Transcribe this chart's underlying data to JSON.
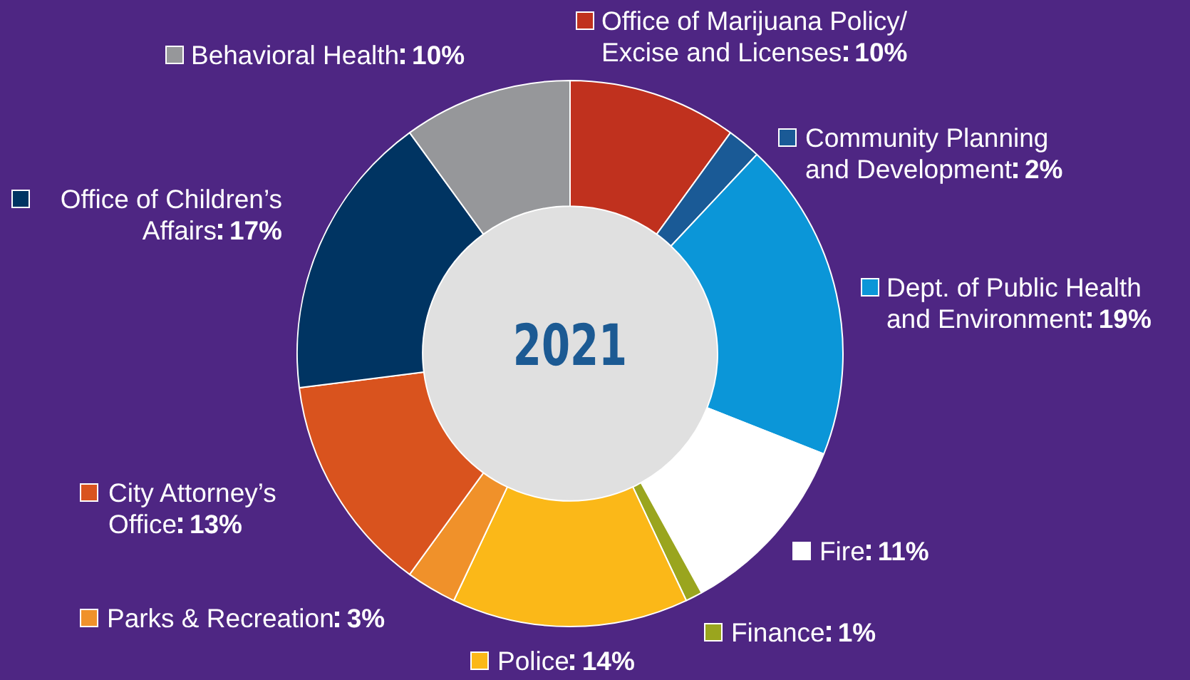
{
  "chart_data": {
    "type": "donut",
    "title": "2021",
    "categories": [
      "Office of Marijuana Policy/ Excise and Licenses",
      "Community Planning and Development",
      "Dept. of Public Health and Environment",
      "Fire",
      "Finance",
      "Police",
      "Parks & Recreation",
      "City Attorney’s Office",
      "Office of Children’s Affairs",
      "Behavioral Health"
    ],
    "values": [
      10,
      2,
      19,
      11,
      1,
      14,
      3,
      13,
      17,
      10
    ],
    "value_labels": [
      "10%",
      "2%",
      "19%",
      "11%",
      "1%",
      "14%",
      "3%",
      "13%",
      "17%",
      "10%"
    ],
    "colors": [
      "#c0311e",
      "#1a5a96",
      "#0b96d8",
      "#ffffff",
      "#9aa51e",
      "#fbb818",
      "#f0912a",
      "#d9531e",
      "#003462",
      "#96979a"
    ],
    "legend": "right"
  }
}
